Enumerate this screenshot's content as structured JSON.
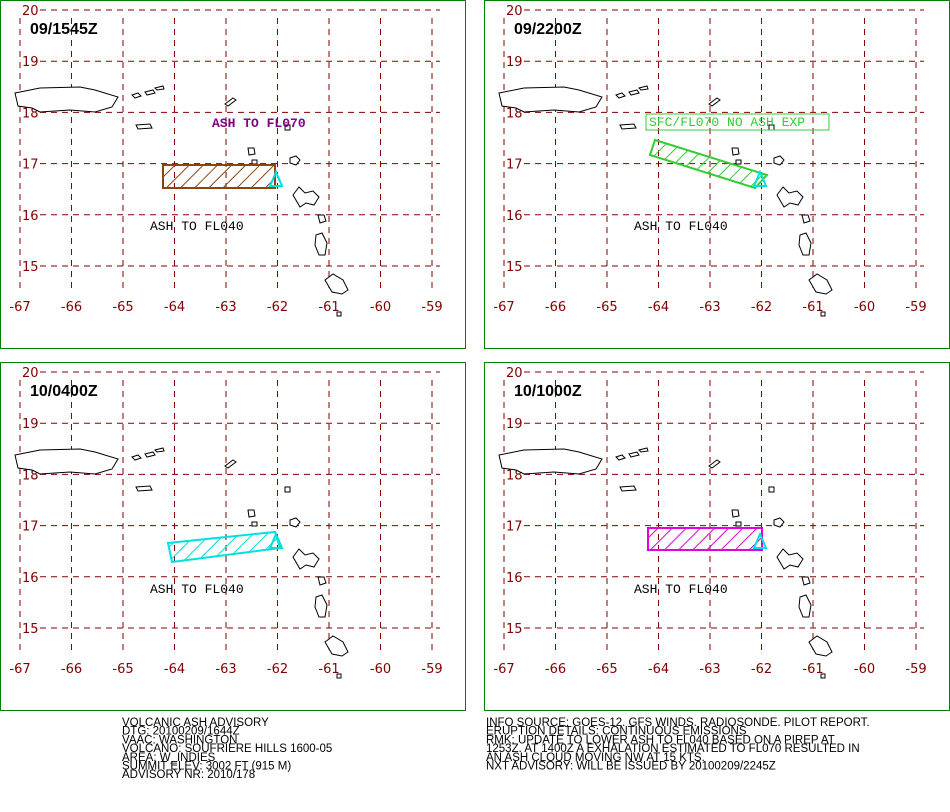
{
  "panels": [
    {
      "time": "09/1545Z",
      "labels": [
        "ASH TO FL070",
        "ASH TO FL040"
      ]
    },
    {
      "time": "09/2200Z",
      "labels": [
        "SFC/FL070 NO ASH EXP",
        "ASH TO FL040"
      ]
    },
    {
      "time": "10/0400Z",
      "labels": [
        "ASH TO FL040"
      ]
    },
    {
      "time": "10/1000Z",
      "labels": [
        "ASH TO FL040"
      ]
    }
  ],
  "grid": {
    "lat": [
      20,
      19,
      18,
      17,
      16,
      15
    ],
    "lon": [
      -67,
      -66,
      -65,
      -64,
      -63,
      -62,
      -61,
      -60,
      -59
    ]
  },
  "advisory": {
    "left": [
      "VOLCANIC ASH ADVISORY",
      "DTG: 20100209/1644Z",
      "VAAC: WASHINGTON",
      "VOLCANO: SOUFRIERE HILLS 1600-05",
      "AREA: W_INDIES",
      "SUMMIT ELEV: 3002 FT (915 M)",
      "ADVISORY NR: 2010/178"
    ],
    "right": [
      "INFO SOURCE: GOES-12. GFS WINDS. RADIOSONDE. PILOT REPORT.",
      "ERUPTION DETAILS: CONTINUOUS EMISSIONS",
      "RMK: UPDATE TO LOWER ASH TO FL040 BASED ON A PIREP AT",
      "1253Z. AT 1400Z A EXHALATION ESTIMATED TO FL070 RESULTED IN",
      "AN ASH CLOUD MOVING NW AT 15 KTS.",
      "NXT ADVISORY: WILL BE ISSUED BY 20100209/2245Z"
    ]
  }
}
